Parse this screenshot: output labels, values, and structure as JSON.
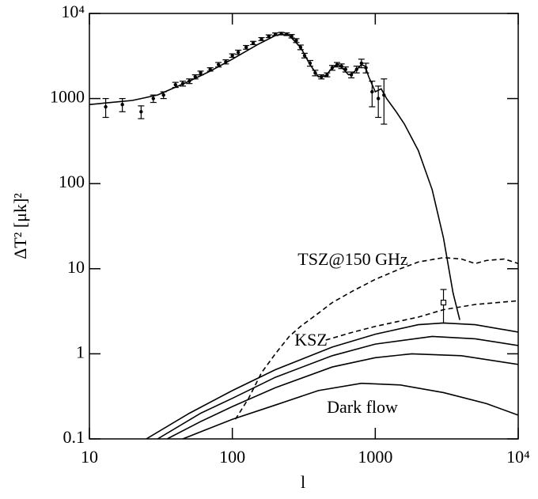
{
  "chart_data": {
    "type": "line",
    "xscale": "log",
    "yscale": "log",
    "xlabel": "l",
    "ylabel": "ΔT² [μk]²",
    "xlim": [
      10,
      10000
    ],
    "ylim": [
      0.1,
      10000
    ],
    "xticks": [
      10,
      100,
      1000,
      {
        "value": 10000,
        "label": "10⁴"
      }
    ],
    "yticks": [
      0.1,
      1,
      10,
      100,
      1000,
      {
        "value": 10000,
        "label": "10⁴"
      }
    ],
    "annotations": [
      "TSZ@150 GHz",
      "KSZ",
      "Dark flow"
    ],
    "series": [
      {
        "color": "#000000",
        "linestyle": "solid",
        "x": [
          10,
          20,
          30,
          50,
          70,
          100,
          150,
          200,
          220,
          250,
          300,
          350,
          400,
          450,
          500,
          550,
          600,
          650,
          700,
          800,
          850,
          900,
          1000,
          1100,
          1200,
          1400,
          1600,
          2000,
          2500,
          3000,
          3500,
          3900
        ],
        "values": [
          850,
          950,
          1100,
          1600,
          2100,
          2900,
          4300,
          5500,
          5700,
          5500,
          4000,
          2500,
          1800,
          1850,
          2300,
          2500,
          2200,
          1900,
          2000,
          2500,
          2400,
          1800,
          1200,
          1300,
          1000,
          700,
          500,
          245,
          85,
          23,
          5.2,
          2.5
        ]
      },
      {
        "color": "#000000",
        "linestyle": "none",
        "marker": "circle",
        "x": [
          13,
          17,
          23,
          28,
          33,
          40,
          45,
          50,
          55,
          60,
          70,
          80,
          90,
          100,
          110,
          125,
          140,
          160,
          180,
          200,
          220,
          240,
          260,
          280,
          300,
          320,
          350,
          380,
          420,
          460,
          500,
          540,
          580,
          620,
          680,
          740,
          800,
          860,
          950,
          1050,
          1150
        ],
        "values": [
          800,
          850,
          700,
          1000,
          1100,
          1450,
          1500,
          1600,
          1800,
          2000,
          2200,
          2500,
          2700,
          3200,
          3500,
          4000,
          4500,
          5000,
          5400,
          5700,
          5800,
          5700,
          5400,
          4800,
          4000,
          3200,
          2600,
          2000,
          1800,
          1900,
          2300,
          2500,
          2400,
          2200,
          1900,
          2200,
          2600,
          2300,
          1200,
          1000,
          1100
        ],
        "errors": [
          200,
          150,
          120,
          100,
          100,
          100,
          100,
          100,
          100,
          100,
          100,
          150,
          150,
          150,
          200,
          200,
          200,
          200,
          200,
          200,
          200,
          200,
          250,
          250,
          250,
          200,
          200,
          150,
          100,
          100,
          150,
          150,
          150,
          150,
          150,
          200,
          300,
          300,
          400,
          400,
          600
        ]
      },
      {
        "color": "#000000",
        "linestyle": "none",
        "marker": "square",
        "x": [
          3000
        ],
        "values": [
          4
        ],
        "errors": [
          1.7
        ]
      },
      {
        "color": "#000000",
        "linestyle": "dashed",
        "x": [
          105,
          130,
          160,
          200,
          250,
          300,
          400,
          500,
          700,
          1000,
          1500,
          2000,
          3000,
          4000,
          5000,
          6000,
          8000,
          10000
        ],
        "values": [
          0.17,
          0.3,
          0.6,
          1.0,
          1.6,
          2.1,
          3.0,
          4.0,
          5.5,
          7.5,
          10,
          12,
          13.5,
          13,
          11.5,
          12.5,
          13,
          11.5
        ]
      },
      {
        "color": "#000000",
        "linestyle": "dashed",
        "x": [
          450,
          700,
          1000,
          2000,
          3000,
          5000,
          10000
        ],
        "values": [
          1.45,
          1.8,
          2.1,
          2.7,
          3.3,
          3.8,
          4.2
        ]
      },
      {
        "color": "#000000",
        "linestyle": "solid",
        "x": [
          25,
          50,
          100,
          200,
          500,
          1000,
          2000,
          3000,
          5000,
          10000
        ],
        "values": [
          0.1,
          0.2,
          0.37,
          0.65,
          1.2,
          1.7,
          2.2,
          2.3,
          2.2,
          1.8
        ]
      },
      {
        "color": "#000000",
        "linestyle": "solid",
        "x": [
          30,
          60,
          100,
          200,
          500,
          1000,
          2500,
          5000,
          10000
        ],
        "values": [
          0.1,
          0.2,
          0.3,
          0.53,
          0.95,
          1.3,
          1.6,
          1.5,
          1.25
        ]
      },
      {
        "color": "#000000",
        "linestyle": "solid",
        "x": [
          35,
          60,
          100,
          200,
          500,
          1000,
          1800,
          4000,
          10000
        ],
        "values": [
          0.1,
          0.16,
          0.24,
          0.4,
          0.7,
          0.9,
          1.0,
          0.95,
          0.75
        ]
      },
      {
        "color": "#000000",
        "linestyle": "solid",
        "x": [
          45,
          100,
          200,
          400,
          800,
          1500,
          3000,
          6000,
          10000
        ],
        "values": [
          0.1,
          0.17,
          0.25,
          0.37,
          0.45,
          0.43,
          0.35,
          0.26,
          0.19
        ]
      }
    ]
  }
}
